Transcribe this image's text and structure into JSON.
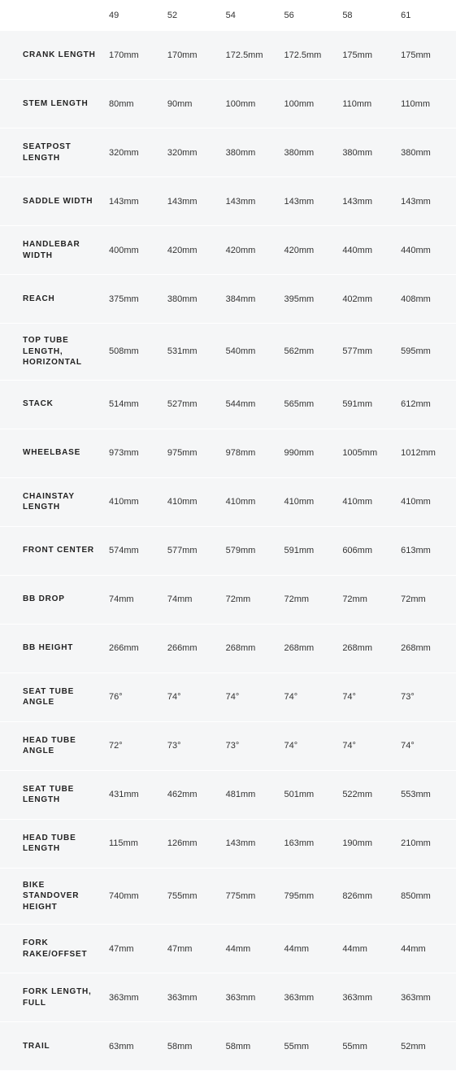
{
  "type": "table",
  "background_color": "#ffffff",
  "row_background_color": "#f5f6f7",
  "text_color": "#333333",
  "label_text_color": "#222222",
  "label_fontsize": 10,
  "value_fontsize": 11,
  "header_fontsize": 11,
  "label_font_weight": 700,
  "columns": [
    "49",
    "52",
    "54",
    "56",
    "58",
    "61"
  ],
  "rows": [
    {
      "label": "CRANK LENGTH",
      "values": [
        "170mm",
        "170mm",
        "172.5mm",
        "172.5mm",
        "175mm",
        "175mm"
      ]
    },
    {
      "label": "STEM LENGTH",
      "values": [
        "80mm",
        "90mm",
        "100mm",
        "100mm",
        "110mm",
        "110mm"
      ]
    },
    {
      "label": "SEATPOST LENGTH",
      "values": [
        "320mm",
        "320mm",
        "380mm",
        "380mm",
        "380mm",
        "380mm"
      ]
    },
    {
      "label": "SADDLE WIDTH",
      "values": [
        "143mm",
        "143mm",
        "143mm",
        "143mm",
        "143mm",
        "143mm"
      ]
    },
    {
      "label": "HANDLEBAR WIDTH",
      "values": [
        "400mm",
        "420mm",
        "420mm",
        "420mm",
        "440mm",
        "440mm"
      ]
    },
    {
      "label": "REACH",
      "values": [
        "375mm",
        "380mm",
        "384mm",
        "395mm",
        "402mm",
        "408mm"
      ]
    },
    {
      "label": "TOP TUBE LENGTH, HORIZONTAL",
      "values": [
        "508mm",
        "531mm",
        "540mm",
        "562mm",
        "577mm",
        "595mm"
      ]
    },
    {
      "label": "STACK",
      "values": [
        "514mm",
        "527mm",
        "544mm",
        "565mm",
        "591mm",
        "612mm"
      ]
    },
    {
      "label": "WHEELBASE",
      "values": [
        "973mm",
        "975mm",
        "978mm",
        "990mm",
        "1005mm",
        "1012mm"
      ]
    },
    {
      "label": "CHAINSTAY LENGTH",
      "values": [
        "410mm",
        "410mm",
        "410mm",
        "410mm",
        "410mm",
        "410mm"
      ]
    },
    {
      "label": "FRONT CENTER",
      "values": [
        "574mm",
        "577mm",
        "579mm",
        "591mm",
        "606mm",
        "613mm"
      ]
    },
    {
      "label": "BB DROP",
      "values": [
        "74mm",
        "74mm",
        "72mm",
        "72mm",
        "72mm",
        "72mm"
      ]
    },
    {
      "label": "BB HEIGHT",
      "values": [
        "266mm",
        "266mm",
        "268mm",
        "268mm",
        "268mm",
        "268mm"
      ]
    },
    {
      "label": "SEAT TUBE ANGLE",
      "values": [
        "76°",
        "74°",
        "74°",
        "74°",
        "74°",
        "73°"
      ]
    },
    {
      "label": "HEAD TUBE ANGLE",
      "values": [
        "72°",
        "73°",
        "73°",
        "74°",
        "74°",
        "74°"
      ]
    },
    {
      "label": "SEAT TUBE LENGTH",
      "values": [
        "431mm",
        "462mm",
        "481mm",
        "501mm",
        "522mm",
        "553mm"
      ]
    },
    {
      "label": "HEAD TUBE LENGTH",
      "values": [
        "115mm",
        "126mm",
        "143mm",
        "163mm",
        "190mm",
        "210mm"
      ]
    },
    {
      "label": "BIKE STANDOVER HEIGHT",
      "values": [
        "740mm",
        "755mm",
        "775mm",
        "795mm",
        "826mm",
        "850mm"
      ]
    },
    {
      "label": "FORK RAKE/OFFSET",
      "values": [
        "47mm",
        "47mm",
        "44mm",
        "44mm",
        "44mm",
        "44mm"
      ]
    },
    {
      "label": "FORK LENGTH, FULL",
      "values": [
        "363mm",
        "363mm",
        "363mm",
        "363mm",
        "363mm",
        "363mm"
      ]
    },
    {
      "label": "TRAIL",
      "values": [
        "63mm",
        "58mm",
        "58mm",
        "55mm",
        "55mm",
        "52mm"
      ]
    }
  ]
}
